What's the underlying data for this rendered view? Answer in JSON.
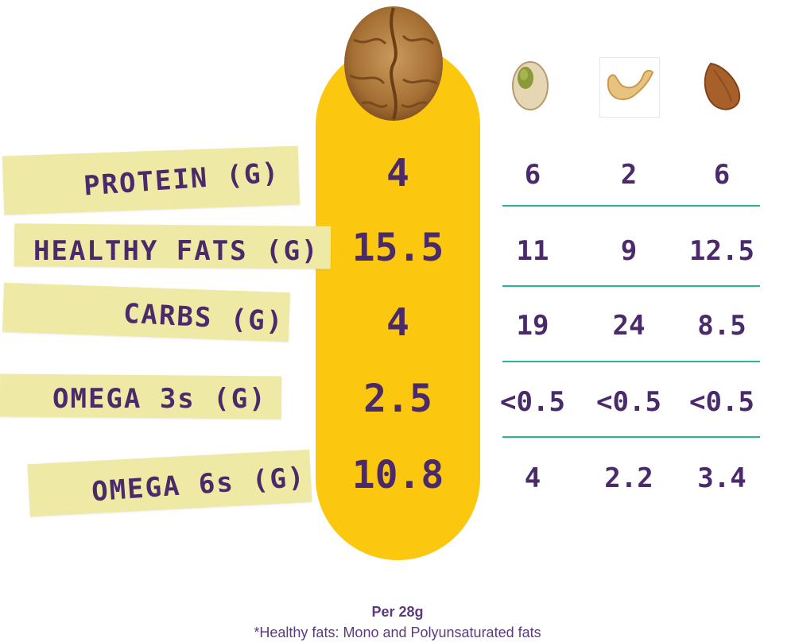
{
  "nuts": [
    {
      "name": "walnut-icon"
    },
    {
      "name": "pistachio-icon"
    },
    {
      "name": "cashew-icon"
    },
    {
      "name": "almond-icon"
    }
  ],
  "rows": [
    {
      "label": "PROTEIN (G)",
      "walnut": "4",
      "pistachio": "6",
      "cashew": "2",
      "almond": "6"
    },
    {
      "label": "HEALTHY FATS (G)",
      "walnut": "15.5",
      "pistachio": "11",
      "cashew": "9",
      "almond": "12.5"
    },
    {
      "label": "CARBS (G)",
      "walnut": "4",
      "pistachio": "19",
      "cashew": "24",
      "almond": "8.5"
    },
    {
      "label": "OMEGA 3s (G)",
      "walnut": "2.5",
      "pistachio": "<0.5",
      "cashew": "<0.5",
      "almond": "<0.5"
    },
    {
      "label": "OMEGA 6s (G)",
      "walnut": "10.8",
      "pistachio": "4",
      "cashew": "2.2",
      "almond": "3.4"
    }
  ],
  "footer": {
    "serving": "Per 28g",
    "note": "*Healthy fats: Mono and Polyunsaturated fats"
  },
  "colors": {
    "highlight": "#fcc70f",
    "text": "#4a2a6a",
    "tape": "#eeeaa5",
    "divider": "#29b59a"
  }
}
